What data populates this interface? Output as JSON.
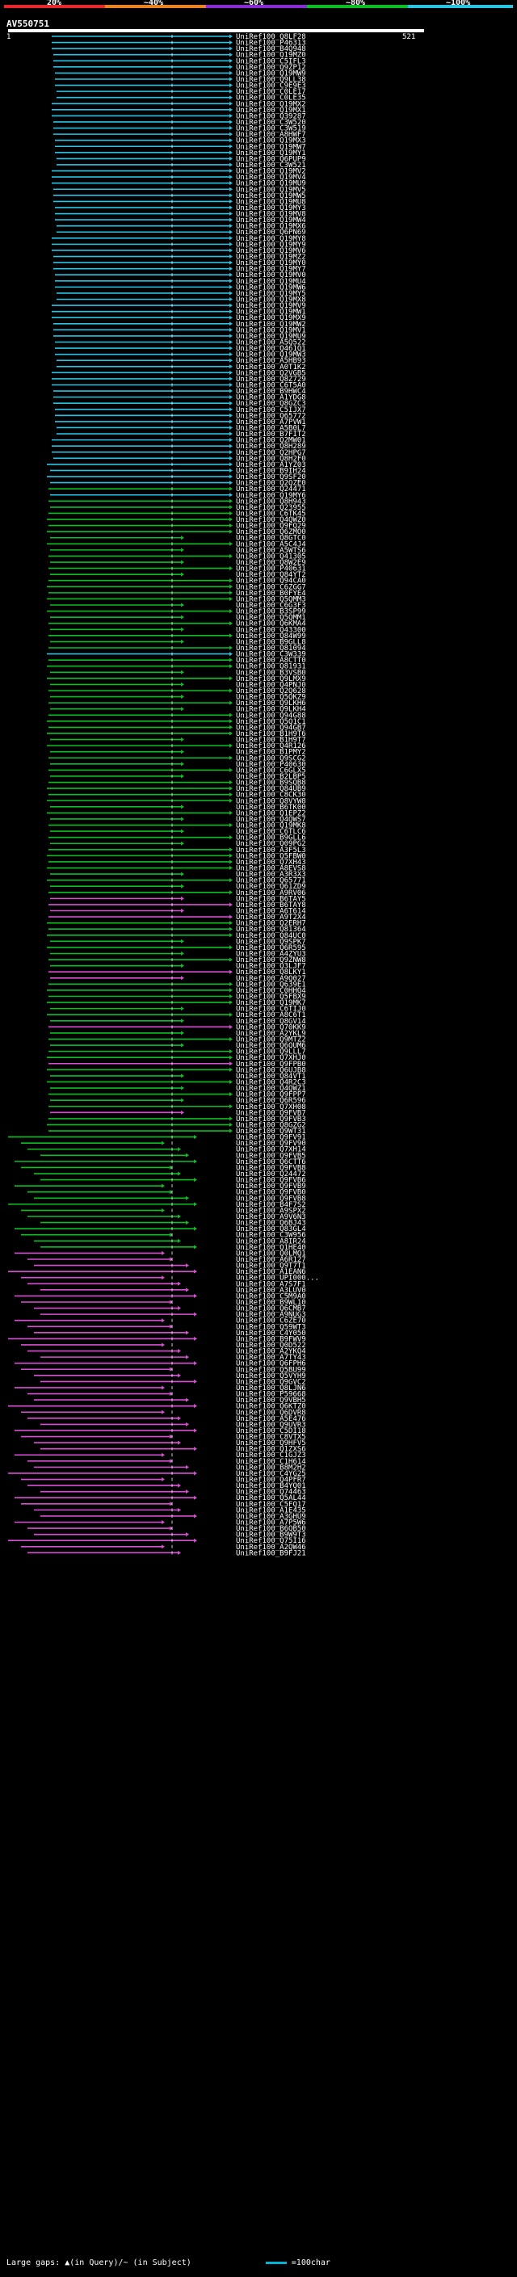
{
  "scale": {
    "ticks": [
      "20%",
      "~40%",
      "~60%",
      "~80%",
      "~100%"
    ],
    "colors": [
      "#e8262e",
      "#e8821e",
      "#8a2bd6",
      "#0bbf23",
      "#27c4e6"
    ]
  },
  "query": {
    "name": "AV550751",
    "start": "1",
    "end": "521"
  },
  "hits": [
    {
      "name": "UniRef100_Q8LF28",
      "c": "#27c4e6"
    },
    {
      "name": "UniRef100_P46313",
      "c": "#27c4e6"
    },
    {
      "name": "UniRef100_B4Q948",
      "c": "#27c4e6"
    },
    {
      "name": "UniRef100_Q19MZ0",
      "c": "#27c4e6"
    },
    {
      "name": "UniRef100_C5IFL3",
      "c": "#27c4e6"
    },
    {
      "name": "UniRef100_Q9ZP12",
      "c": "#27c4e6"
    },
    {
      "name": "UniRef100_Q19MW9",
      "c": "#27c4e6"
    },
    {
      "name": "UniRef100_Q9LL38",
      "c": "#27c4e6"
    },
    {
      "name": "UniRef100_C9E9E3",
      "c": "#27c4e6"
    },
    {
      "name": "UniRef100_C0LE17",
      "c": "#27c4e6"
    },
    {
      "name": "UniRef100_C0LE35",
      "c": "#27c4e6"
    },
    {
      "name": "UniRef100_Q19MX2",
      "c": "#27c4e6"
    },
    {
      "name": "UniRef100_Q19MX1",
      "c": "#27c4e6"
    },
    {
      "name": "UniRef100_Q39287",
      "c": "#27c4e6"
    },
    {
      "name": "UniRef100_C3W520",
      "c": "#27c4e6"
    },
    {
      "name": "UniRef100_C3W519",
      "c": "#27c4e6"
    },
    {
      "name": "UniRef100_A8HWF7",
      "c": "#27c4e6"
    },
    {
      "name": "UniRef100_Q19MX3",
      "c": "#27c4e6"
    },
    {
      "name": "UniRef100_Q19MW7",
      "c": "#27c4e6"
    },
    {
      "name": "UniRef100_Q19MY1",
      "c": "#27c4e6"
    },
    {
      "name": "UniRef100_Q6PUP9",
      "c": "#27c4e6"
    },
    {
      "name": "UniRef100_C3W521",
      "c": "#27c4e6"
    },
    {
      "name": "UniRef100_Q19MV2",
      "c": "#27c4e6"
    },
    {
      "name": "UniRef100_Q19MV4",
      "c": "#27c4e6"
    },
    {
      "name": "UniRef100_Q19MU9",
      "c": "#27c4e6"
    },
    {
      "name": "UniRef100_Q19MV5",
      "c": "#27c4e6"
    },
    {
      "name": "UniRef100_Q19MW5",
      "c": "#27c4e6"
    },
    {
      "name": "UniRef100_Q19MU8",
      "c": "#27c4e6"
    },
    {
      "name": "UniRef100_Q19MY3",
      "c": "#27c4e6"
    },
    {
      "name": "UniRef100_Q19MV8",
      "c": "#27c4e6"
    },
    {
      "name": "UniRef100_Q19MW4",
      "c": "#27c4e6"
    },
    {
      "name": "UniRef100_Q19MX6",
      "c": "#27c4e6"
    },
    {
      "name": "UniRef100_Q6PN69",
      "c": "#27c4e6"
    },
    {
      "name": "UniRef100_Q19MY8",
      "c": "#27c4e6"
    },
    {
      "name": "UniRef100_Q19MY9",
      "c": "#27c4e6"
    },
    {
      "name": "UniRef100_Q19MV6",
      "c": "#27c4e6"
    },
    {
      "name": "UniRef100_Q19MZ2",
      "c": "#27c4e6"
    },
    {
      "name": "UniRef100_Q19MY0",
      "c": "#27c4e6"
    },
    {
      "name": "UniRef100_Q19MY7",
      "c": "#27c4e6"
    },
    {
      "name": "UniRef100_Q19MV0",
      "c": "#27c4e6"
    },
    {
      "name": "UniRef100_Q19MU4",
      "c": "#27c4e6"
    },
    {
      "name": "UniRef100_Q19MW6",
      "c": "#27c4e6"
    },
    {
      "name": "UniRef100_Q19MY5",
      "c": "#27c4e6"
    },
    {
      "name": "UniRef100_Q19MX8",
      "c": "#27c4e6"
    },
    {
      "name": "UniRef100_Q19MV9",
      "c": "#27c4e6"
    },
    {
      "name": "UniRef100_Q19MW1",
      "c": "#27c4e6"
    },
    {
      "name": "UniRef100_Q19MX9",
      "c": "#27c4e6"
    },
    {
      "name": "UniRef100_Q19MW2",
      "c": "#27c4e6"
    },
    {
      "name": "UniRef100_Q19MV1",
      "c": "#27c4e6"
    },
    {
      "name": "UniRef100_Q19MU9",
      "c": "#27c4e6"
    },
    {
      "name": "UniRef100_A5Q522",
      "c": "#27c4e6"
    },
    {
      "name": "UniRef100_Q461Q1",
      "c": "#27c4e6"
    },
    {
      "name": "UniRef100_Q19MW3",
      "c": "#27c4e6"
    },
    {
      "name": "UniRef100_A5HB93",
      "c": "#27c4e6"
    },
    {
      "name": "UniRef100_A0T1K2",
      "c": "#27c4e6"
    },
    {
      "name": "UniRef100_Q2VGB5",
      "c": "#27c4e6"
    },
    {
      "name": "UniRef100_Q8Z729",
      "c": "#27c4e6"
    },
    {
      "name": "UniRef100_C6T5A0",
      "c": "#27c4e6"
    },
    {
      "name": "UniRef100_B9HWC4",
      "c": "#27c4e6"
    },
    {
      "name": "UniRef100_A1YDG8",
      "c": "#27c4e6"
    },
    {
      "name": "UniRef100_Q8GZC3",
      "c": "#27c4e6"
    },
    {
      "name": "UniRef100_C5IJX7",
      "c": "#27c4e6"
    },
    {
      "name": "UniRef100_Q65772",
      "c": "#27c4e6"
    },
    {
      "name": "UniRef100_A7PVW1",
      "c": "#27c4e6"
    },
    {
      "name": "UniRef100_A5B0L7",
      "c": "#27c4e6"
    },
    {
      "name": "UniRef100_B7FIT2",
      "c": "#27c4e6"
    },
    {
      "name": "UniRef100_Q2MW01",
      "c": "#27c4e6"
    },
    {
      "name": "UniRef100_Q8H289",
      "c": "#27c4e6"
    },
    {
      "name": "UniRef100_Q2HPG7",
      "c": "#27c4e6"
    },
    {
      "name": "UniRef100_Q8H2F0",
      "c": "#27c4e6"
    },
    {
      "name": "UniRef100_A1YZ03",
      "c": "#27c4e6"
    },
    {
      "name": "UniRef100_B9IH24",
      "c": "#27c4e6"
    },
    {
      "name": "UniRef100_Q9SF20",
      "c": "#27c4e6"
    },
    {
      "name": "UniRef100_Q2QZE0",
      "c": "#27c4e6"
    },
    {
      "name": "UniRef100_Q24471",
      "c": "#0bbf23"
    },
    {
      "name": "UniRef100_Q19MY6",
      "c": "#27c4e6"
    },
    {
      "name": "UniRef100_Q8H943",
      "c": "#0bbf23"
    },
    {
      "name": "UniRef100_Q23955",
      "c": "#0bbf23"
    },
    {
      "name": "UniRef100_C6TK45",
      "c": "#0bbf23"
    },
    {
      "name": "UniRef100_Q4QWZ0",
      "c": "#0bbf23"
    },
    {
      "name": "UniRef100_Q9FQ29",
      "c": "#0bbf23"
    },
    {
      "name": "UniRef100_Q6ZMO0",
      "c": "#0bbf23"
    },
    {
      "name": "UniRef100_Q8GTC0",
      "c": "#0bbf23"
    },
    {
      "name": "UniRef100_A5C4J4",
      "c": "#0bbf23"
    },
    {
      "name": "UniRef100_A5WTS6",
      "c": "#0bbf23"
    },
    {
      "name": "UniRef100_Q41305",
      "c": "#0bbf23"
    },
    {
      "name": "UniRef100_Q8W2E9",
      "c": "#0bbf23"
    },
    {
      "name": "UniRef100_P40631",
      "c": "#0bbf23"
    },
    {
      "name": "UniRef100_Q84YT2",
      "c": "#0bbf23"
    },
    {
      "name": "UniRef100_Q94CA0",
      "c": "#0bbf23"
    },
    {
      "name": "UniRef100_C6ZGG7",
      "c": "#0bbf23"
    },
    {
      "name": "UniRef100_B0FYE4",
      "c": "#0bbf23"
    },
    {
      "name": "UniRef100_Q5QMM3",
      "c": "#0bbf23"
    },
    {
      "name": "UniRef100_C6G3F3",
      "c": "#0bbf23"
    },
    {
      "name": "UniRef100_B3SP99",
      "c": "#0bbf23"
    },
    {
      "name": "UniRef100_Q5QMM1",
      "c": "#0bbf23"
    },
    {
      "name": "UniRef100_Q6KMA4",
      "c": "#0bbf23"
    },
    {
      "name": "UniRef100_Q43300",
      "c": "#0bbf23"
    },
    {
      "name": "UniRef100_Q84W99",
      "c": "#0bbf23"
    },
    {
      "name": "UniRef100_B9GLL8",
      "c": "#0bbf23"
    },
    {
      "name": "UniRef100_Q81094",
      "c": "#0bbf23"
    },
    {
      "name": "UniRef100_C3W339",
      "c": "#27c4e6"
    },
    {
      "name": "UniRef100_A8CTT0",
      "c": "#0bbf23"
    },
    {
      "name": "UniRef100_Q81931",
      "c": "#0bbf23"
    },
    {
      "name": "UniRef100_B3VSB0",
      "c": "#0bbf23"
    },
    {
      "name": "UniRef100_Q9LMX9",
      "c": "#0bbf23"
    },
    {
      "name": "UniRef100_Q4PNJ0",
      "c": "#0bbf23"
    },
    {
      "name": "UniRef100_Q2Q628",
      "c": "#0bbf23"
    },
    {
      "name": "UniRef100_Q5QKZ9",
      "c": "#0bbf23"
    },
    {
      "name": "UniRef100_Q9LKH6",
      "c": "#0bbf23"
    },
    {
      "name": "UniRef100_Q9LKH4",
      "c": "#0bbf23"
    },
    {
      "name": "UniRef100_Q94G88",
      "c": "#0bbf23"
    },
    {
      "name": "UniRef100_Q5Q1C1",
      "c": "#0bbf23"
    },
    {
      "name": "UniRef100_Q94GB7",
      "c": "#0bbf23"
    },
    {
      "name": "UniRef100_B1H9T6",
      "c": "#0bbf23"
    },
    {
      "name": "UniRef100_B1H9T7",
      "c": "#0bbf23"
    },
    {
      "name": "UniRef100_Q4R126",
      "c": "#0bbf23"
    },
    {
      "name": "UniRef100_B1PMY2",
      "c": "#0bbf23"
    },
    {
      "name": "UniRef100_Q9SCG2",
      "c": "#0bbf23"
    },
    {
      "name": "UniRef100_P40630",
      "c": "#0bbf23"
    },
    {
      "name": "UniRef100_C6GLX5",
      "c": "#0bbf23"
    },
    {
      "name": "UniRef100_B2LBP5",
      "c": "#0bbf23"
    },
    {
      "name": "UniRef100_B9SQB8",
      "c": "#0bbf23"
    },
    {
      "name": "UniRef100_Q84UB9",
      "c": "#0bbf23"
    },
    {
      "name": "UniRef100_C8CK30",
      "c": "#0bbf23"
    },
    {
      "name": "UniRef100_Q8VYW8",
      "c": "#0bbf23"
    },
    {
      "name": "UniRef100_B6TK00",
      "c": "#0bbf23"
    },
    {
      "name": "UniRef100_Q1EPZ2",
      "c": "#0bbf23"
    },
    {
      "name": "UniRef100_Q4QWS7",
      "c": "#0bbf23"
    },
    {
      "name": "UniRef100_Q19MK8",
      "c": "#0bbf23"
    },
    {
      "name": "UniRef100_C6TLC6",
      "c": "#0bbf23"
    },
    {
      "name": "UniRef100_B9GLL6",
      "c": "#0bbf23"
    },
    {
      "name": "UniRef100_Q09PG2",
      "c": "#0bbf23"
    },
    {
      "name": "UniRef100_A3F5L3",
      "c": "#0bbf23"
    },
    {
      "name": "UniRef100_Q5FBW0",
      "c": "#0bbf23"
    },
    {
      "name": "UniRef100_Q7XH43",
      "c": "#0bbf23"
    },
    {
      "name": "UniRef100_A8EVS8",
      "c": "#0bbf23"
    },
    {
      "name": "UniRef100_A3R3X3",
      "c": "#0bbf23"
    },
    {
      "name": "UniRef100_Q65771",
      "c": "#0bbf23"
    },
    {
      "name": "UniRef100_Q61ZD9",
      "c": "#0bbf23"
    },
    {
      "name": "UniRef100_A9RV06",
      "c": "#0bbf23"
    },
    {
      "name": "UniRef100_B6TAY5",
      "c": "#d94fd3"
    },
    {
      "name": "UniRef100_B6TAY8",
      "c": "#d94fd3"
    },
    {
      "name": "UniRef100_A6T614",
      "c": "#d94fd3"
    },
    {
      "name": "UniRef100_A9T2X4",
      "c": "#d94fd3"
    },
    {
      "name": "UniRef100_Q2ERH7",
      "c": "#0bbf23"
    },
    {
      "name": "UniRef100_Q81364",
      "c": "#0bbf23"
    },
    {
      "name": "UniRef100_Q84UC0",
      "c": "#0bbf23"
    },
    {
      "name": "UniRef100_Q9SPK7",
      "c": "#0bbf23"
    },
    {
      "name": "UniRef100_Q6R595",
      "c": "#0bbf23"
    },
    {
      "name": "UniRef100_A4ZYU3",
      "c": "#0bbf23"
    },
    {
      "name": "UniRef100_Q9ZNW8",
      "c": "#0bbf23"
    },
    {
      "name": "UniRef100_Q3LJF7",
      "c": "#0bbf23"
    },
    {
      "name": "UniRef100_Q8LKY1",
      "c": "#d94fd3"
    },
    {
      "name": "UniRef100_A9Q027",
      "c": "#d94fd3"
    },
    {
      "name": "UniRef100_Q639E1",
      "c": "#0bbf23"
    },
    {
      "name": "UniRef100_C0HHQ4",
      "c": "#0bbf23"
    },
    {
      "name": "UniRef100_Q5FBX9",
      "c": "#0bbf23"
    },
    {
      "name": "UniRef100_Q19MK7",
      "c": "#0bbf23"
    },
    {
      "name": "UniRef100_C6TIJ0",
      "c": "#0bbf23"
    },
    {
      "name": "UniRef100_A8C6T1",
      "c": "#0bbf23"
    },
    {
      "name": "UniRef100_Q8GV14",
      "c": "#0bbf23"
    },
    {
      "name": "UniRef100_Q70KK9",
      "c": "#d94fd3"
    },
    {
      "name": "UniRef100_A2YKL9",
      "c": "#0bbf23"
    },
    {
      "name": "UniRef100_Q9MTZ2",
      "c": "#0bbf23"
    },
    {
      "name": "UniRef100_Q6QUM6",
      "c": "#0bbf23"
    },
    {
      "name": "UniRef100_Q9LLL7",
      "c": "#0bbf23"
    },
    {
      "name": "UniRef100_Q7XHJ0",
      "c": "#0bbf23"
    },
    {
      "name": "UniRef100_Q9FPB0",
      "c": "#d94fd3"
    },
    {
      "name": "UniRef100_Q6UJB8",
      "c": "#0bbf23"
    },
    {
      "name": "UniRef100_Q84VT1",
      "c": "#0bbf23"
    },
    {
      "name": "UniRef100_Q4R2C3",
      "c": "#0bbf23"
    },
    {
      "name": "UniRef100_Q4QWZ1",
      "c": "#0bbf23"
    },
    {
      "name": "UniRef100_Q9FPP7",
      "c": "#0bbf23"
    },
    {
      "name": "UniRef100_Q6R596",
      "c": "#0bbf23"
    },
    {
      "name": "UniRef100_Q7XH08",
      "c": "#0bbf23"
    },
    {
      "name": "UniRef100_Q9FVB7",
      "c": "#d94fd3"
    },
    {
      "name": "UniRef100_Q9FVB3",
      "c": "#0bbf23"
    },
    {
      "name": "UniRef100_Q8GZG2",
      "c": "#0bbf23"
    },
    {
      "name": "UniRef100_Q9WT31",
      "c": "#0bbf23"
    },
    {
      "name": "UniRef100_Q9FV91",
      "c": "#0bbf23"
    },
    {
      "name": "UniRef100_Q9FV90",
      "c": "#0bbf23"
    },
    {
      "name": "UniRef100_Q7XH14",
      "c": "#0bbf23"
    },
    {
      "name": "UniRef100_Q9FVB5",
      "c": "#0bbf23"
    },
    {
      "name": "UniRef100_Q6CTT6",
      "c": "#0bbf23"
    },
    {
      "name": "UniRef100_Q9FVB8",
      "c": "#0bbf23"
    },
    {
      "name": "UniRef100_Q24472",
      "c": "#0bbf23"
    },
    {
      "name": "UniRef100_Q9FVB6",
      "c": "#0bbf23"
    },
    {
      "name": "UniRef100_Q9FVB9",
      "c": "#0bbf23"
    },
    {
      "name": "UniRef100_Q9FVB0",
      "c": "#0bbf23"
    },
    {
      "name": "UniRef100_Q9FVB8",
      "c": "#0bbf23"
    },
    {
      "name": "UniRef100_B4F7S2",
      "c": "#0bbf23"
    },
    {
      "name": "UniRef100_A9SPX2",
      "c": "#0bbf23"
    },
    {
      "name": "UniRef100_A9V6N3",
      "c": "#0bbf23"
    },
    {
      "name": "UniRef100_Q6BJ43",
      "c": "#0bbf23"
    },
    {
      "name": "UniRef100_Q83GL4",
      "c": "#0bbf23"
    },
    {
      "name": "UniRef100_C3W956",
      "c": "#0bbf23"
    },
    {
      "name": "UniRef100_A8IR24",
      "c": "#0bbf23"
    },
    {
      "name": "UniRef100_Q1HE40",
      "c": "#0bbf23"
    },
    {
      "name": "UniRef100_Q0LMQ1",
      "c": "#d94fd3"
    },
    {
      "name": "UniRef100_A6R127",
      "c": "#d94fd3"
    },
    {
      "name": "UniRef100_Q9T7T1",
      "c": "#d94fd3"
    },
    {
      "name": "UniRef100_A1EAN6",
      "c": "#d94fd3"
    },
    {
      "name": "UniRef100_UPI000...",
      "c": "#d94fd3"
    },
    {
      "name": "UniRef100_A7S7F1",
      "c": "#d94fd3"
    },
    {
      "name": "UniRef100_A3LUV0",
      "c": "#d94fd3"
    },
    {
      "name": "UniRef100_C5M9A0",
      "c": "#d94fd3"
    },
    {
      "name": "UniRef100_B9WL10",
      "c": "#d94fd3"
    },
    {
      "name": "UniRef100_Q6CMB7",
      "c": "#d94fd3"
    },
    {
      "name": "UniRef100_A9NUG3",
      "c": "#d94fd3"
    },
    {
      "name": "UniRef100_C6ZE70",
      "c": "#d94fd3"
    },
    {
      "name": "UniRef100_Q59WT3",
      "c": "#d94fd3"
    },
    {
      "name": "UniRef100_C4Y050",
      "c": "#d94fd3"
    },
    {
      "name": "UniRef100_B9FWV9",
      "c": "#d94fd3"
    },
    {
      "name": "UniRef100_Q0D522",
      "c": "#d94fd3"
    },
    {
      "name": "UniRef100_A2YKQ4",
      "c": "#d94fd3"
    },
    {
      "name": "UniRef100_A7TY43",
      "c": "#d94fd3"
    },
    {
      "name": "UniRef100_Q6FPH6",
      "c": "#d94fd3"
    },
    {
      "name": "UniRef100_Q5BU99",
      "c": "#d94fd3"
    },
    {
      "name": "UniRef100_Q5VYH9",
      "c": "#d94fd3"
    },
    {
      "name": "UniRef100_Q9GVC2",
      "c": "#d94fd3"
    },
    {
      "name": "UniRef100_Q8LJN6",
      "c": "#d94fd3"
    },
    {
      "name": "UniRef100_P59668",
      "c": "#d94fd3"
    },
    {
      "name": "UniRef100_Q9VBH5",
      "c": "#d94fd3"
    },
    {
      "name": "UniRef100_Q6KTZ0",
      "c": "#d94fd3"
    },
    {
      "name": "UniRef100_Q6DVR8",
      "c": "#d94fd3"
    },
    {
      "name": "UniRef100_A5E476",
      "c": "#d94fd3"
    },
    {
      "name": "UniRef100_Q9UVR3",
      "c": "#d94fd3"
    },
    {
      "name": "UniRef100_C5DI18",
      "c": "#d94fd3"
    },
    {
      "name": "UniRef100_C8VTX5",
      "c": "#d94fd3"
    },
    {
      "name": "UniRef100_Q9HFV5",
      "c": "#d94fd3"
    },
    {
      "name": "UniRef100_Q1ZXS6",
      "c": "#d94fd3"
    },
    {
      "name": "UniRef100_C1GJZ3",
      "c": "#d94fd3"
    },
    {
      "name": "UniRef100_C1H614",
      "c": "#d94fd3"
    },
    {
      "name": "UniRef100_B8M2H2",
      "c": "#d94fd3"
    },
    {
      "name": "UniRef100_C4YG25",
      "c": "#d94fd3"
    },
    {
      "name": "UniRef100_Q4PFR7",
      "c": "#d94fd3"
    },
    {
      "name": "UniRef100_B4YQ01",
      "c": "#d94fd3"
    },
    {
      "name": "UniRef100_Q74463",
      "c": "#d94fd3"
    },
    {
      "name": "UniRef100_Q5AL44",
      "c": "#d94fd3"
    },
    {
      "name": "UniRef100_C5FQ17",
      "c": "#d94fd3"
    },
    {
      "name": "UniRef100_A1E435",
      "c": "#d94fd3"
    },
    {
      "name": "UniRef100_A3GHU9",
      "c": "#d94fd3"
    },
    {
      "name": "UniRef100_A7P5W6",
      "c": "#d94fd3"
    },
    {
      "name": "UniRef100_B6QB50",
      "c": "#d94fd3"
    },
    {
      "name": "UniRef100_B9W9T3",
      "c": "#d94fd3"
    },
    {
      "name": "UniRef100_Q75I16",
      "c": "#d94fd3"
    },
    {
      "name": "UniRef100_A2QW46",
      "c": "#d94fd3"
    },
    {
      "name": "UniRef100_B9FJ21",
      "c": "#d94fd3"
    }
  ],
  "footer": {
    "gaps_label": "Large gaps:",
    "gaps_desc": "▲(in Query)/~ (in Subject)",
    "scale_text": "=100char"
  }
}
